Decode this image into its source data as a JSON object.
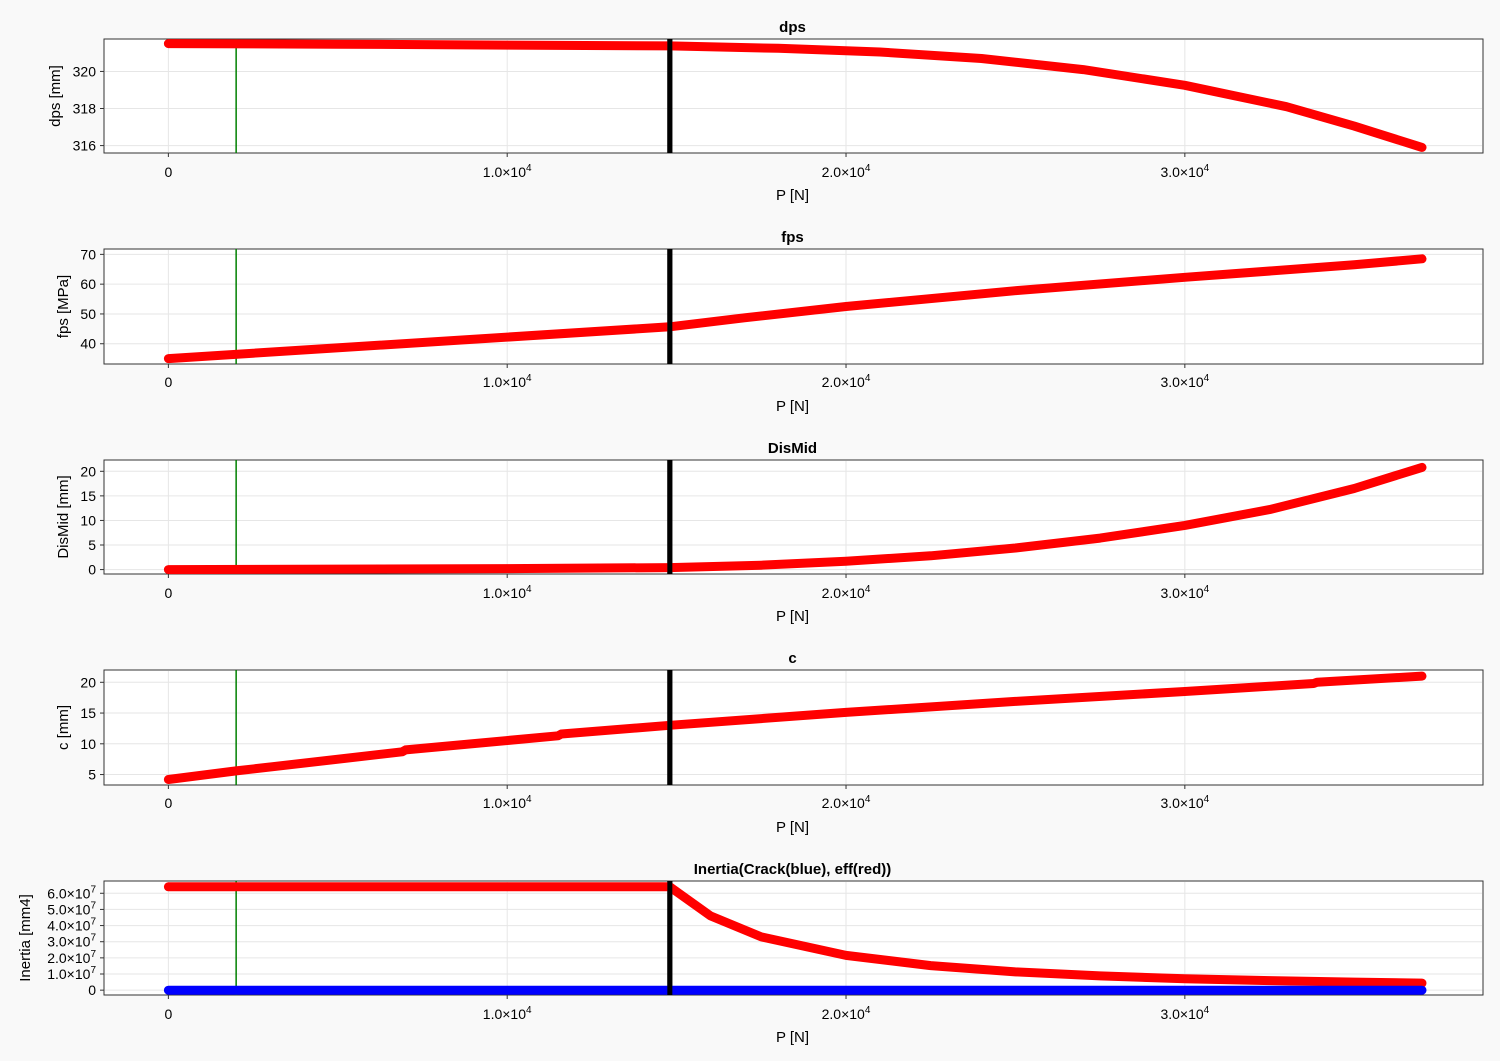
{
  "chart_data": [
    {
      "type": "line",
      "title": "dps",
      "xlabel": "P [N]",
      "ylabel": "dps [mm]",
      "xlim": [
        -1900,
        38800
      ],
      "ylim": [
        315.6,
        321.75
      ],
      "xticks": [
        0,
        10000,
        20000,
        30000
      ],
      "xtick_labels": [
        {
          "mant": "0",
          "exp": ""
        },
        {
          "mant": "1.0×10",
          "exp": "4"
        },
        {
          "mant": "2.0×10",
          "exp": "4"
        },
        {
          "mant": "3.0×10",
          "exp": "4"
        }
      ],
      "yticks": [
        316,
        318,
        320
      ],
      "ytick_labels": [
        {
          "mant": "316",
          "exp": ""
        },
        {
          "mant": "318",
          "exp": ""
        },
        {
          "mant": "320",
          "exp": ""
        }
      ],
      "grid": true,
      "series": [
        {
          "color": "#ff0000",
          "x": [
            0,
            5000,
            10000,
            14800,
            18000,
            21000,
            24000,
            27000,
            30000,
            33000,
            35000,
            37000
          ],
          "y": [
            321.5,
            321.47,
            321.42,
            321.38,
            321.25,
            321.05,
            320.7,
            320.1,
            319.25,
            318.1,
            317.05,
            315.9
          ]
        }
      ],
      "vlines": [
        {
          "x": 2000,
          "color": "#008000",
          "width": 1.5
        },
        {
          "x": 14800,
          "color": "#000000",
          "width": 5
        }
      ]
    },
    {
      "type": "line",
      "title": "fps",
      "xlabel": "P [N]",
      "ylabel": "fps [MPa]",
      "xlim": [
        -1900,
        38800
      ],
      "ylim": [
        33.2,
        71.8
      ],
      "xticks": [
        0,
        10000,
        20000,
        30000
      ],
      "xtick_labels": [
        {
          "mant": "0",
          "exp": ""
        },
        {
          "mant": "1.0×10",
          "exp": "4"
        },
        {
          "mant": "2.0×10",
          "exp": "4"
        },
        {
          "mant": "3.0×10",
          "exp": "4"
        }
      ],
      "yticks": [
        40,
        50,
        60,
        70
      ],
      "ytick_labels": [
        {
          "mant": "40",
          "exp": ""
        },
        {
          "mant": "50",
          "exp": ""
        },
        {
          "mant": "60",
          "exp": ""
        },
        {
          "mant": "70",
          "exp": ""
        }
      ],
      "grid": true,
      "series": [
        {
          "color": "#ff0000",
          "x": [
            0,
            14800,
            17000,
            20000,
            25000,
            30000,
            35000,
            37000
          ],
          "y": [
            35,
            45.7,
            48.7,
            52.5,
            57.8,
            62.3,
            66.5,
            68.5
          ]
        }
      ],
      "vlines": [
        {
          "x": 2000,
          "color": "#008000",
          "width": 1.5
        },
        {
          "x": 14800,
          "color": "#000000",
          "width": 5
        }
      ]
    },
    {
      "type": "line",
      "title": "DisMid",
      "xlabel": "P [N]",
      "ylabel": "DisMid [mm]",
      "xlim": [
        -1900,
        38800
      ],
      "ylim": [
        -0.9,
        22.3
      ],
      "xticks": [
        0,
        10000,
        20000,
        30000
      ],
      "xtick_labels": [
        {
          "mant": "0",
          "exp": ""
        },
        {
          "mant": "1.0×10",
          "exp": "4"
        },
        {
          "mant": "2.0×10",
          "exp": "4"
        },
        {
          "mant": "3.0×10",
          "exp": "4"
        }
      ],
      "yticks": [
        0,
        5,
        10,
        15,
        20
      ],
      "ytick_labels": [
        {
          "mant": "0",
          "exp": ""
        },
        {
          "mant": "5",
          "exp": ""
        },
        {
          "mant": "10",
          "exp": ""
        },
        {
          "mant": "15",
          "exp": ""
        },
        {
          "mant": "20",
          "exp": ""
        }
      ],
      "grid": true,
      "series": [
        {
          "color": "#ff0000",
          "x": [
            0,
            5000,
            10000,
            14800,
            17500,
            20000,
            22500,
            25000,
            27500,
            30000,
            32500,
            35000,
            37000
          ],
          "y": [
            0,
            0.1,
            0.2,
            0.4,
            0.9,
            1.7,
            2.8,
            4.4,
            6.4,
            9.0,
            12.2,
            16.5,
            20.8
          ]
        }
      ],
      "vlines": [
        {
          "x": 2000,
          "color": "#008000",
          "width": 1.5
        },
        {
          "x": 14800,
          "color": "#000000",
          "width": 5
        }
      ]
    },
    {
      "type": "line",
      "title": "c",
      "xlabel": "P [N]",
      "ylabel": "c [mm]",
      "xlim": [
        -1900,
        38800
      ],
      "ylim": [
        3.3,
        22
      ],
      "xticks": [
        0,
        10000,
        20000,
        30000
      ],
      "xtick_labels": [
        {
          "mant": "0",
          "exp": ""
        },
        {
          "mant": "1.0×10",
          "exp": "4"
        },
        {
          "mant": "2.0×10",
          "exp": "4"
        },
        {
          "mant": "3.0×10",
          "exp": "4"
        }
      ],
      "yticks": [
        5,
        10,
        15,
        20
      ],
      "ytick_labels": [
        {
          "mant": "5",
          "exp": ""
        },
        {
          "mant": "10",
          "exp": ""
        },
        {
          "mant": "15",
          "exp": ""
        },
        {
          "mant": "20",
          "exp": ""
        }
      ],
      "grid": true,
      "series": [
        {
          "color": "#ff0000",
          "x": [
            0,
            2000,
            6900,
            7000,
            11500,
            11600,
            14800,
            20000,
            25000,
            30000,
            33800,
            33900,
            37000
          ],
          "y": [
            4.2,
            5.6,
            8.7,
            9.0,
            11.3,
            11.6,
            13.0,
            15.1,
            16.9,
            18.5,
            19.8,
            20.0,
            21.0
          ]
        }
      ],
      "vlines": [
        {
          "x": 2000,
          "color": "#008000",
          "width": 1.5
        },
        {
          "x": 14800,
          "color": "#000000",
          "width": 5
        }
      ]
    },
    {
      "type": "line",
      "title": "Inertia(Crack(blue), eff(red))",
      "xlabel": "P [N]",
      "ylabel": "Inertia [mm4]",
      "xlim": [
        -1900,
        38800
      ],
      "ylim": [
        -3000000,
        67600000
      ],
      "xticks": [
        0,
        10000,
        20000,
        30000
      ],
      "xtick_labels": [
        {
          "mant": "0",
          "exp": ""
        },
        {
          "mant": "1.0×10",
          "exp": "4"
        },
        {
          "mant": "2.0×10",
          "exp": "4"
        },
        {
          "mant": "3.0×10",
          "exp": "4"
        }
      ],
      "yticks": [
        0,
        10000000,
        20000000,
        30000000,
        40000000,
        50000000,
        60000000
      ],
      "ytick_labels": [
        {
          "mant": "0",
          "exp": ""
        },
        {
          "mant": "1.0×10",
          "exp": "7"
        },
        {
          "mant": "2.0×10",
          "exp": "7"
        },
        {
          "mant": "3.0×10",
          "exp": "7"
        },
        {
          "mant": "4.0×10",
          "exp": "7"
        },
        {
          "mant": "5.0×10",
          "exp": "7"
        },
        {
          "mant": "6.0×10",
          "exp": "7"
        }
      ],
      "grid": true,
      "series": [
        {
          "color": "#ff0000",
          "x": [
            0,
            14800,
            16000,
            17500,
            20000,
            22500,
            25000,
            27500,
            30000,
            32500,
            35000,
            37000
          ],
          "y": [
            64000000,
            64000000,
            46000000,
            33000000,
            21500000,
            15200000,
            11300000,
            8800000,
            7100000,
            5900000,
            5000000,
            4400000
          ]
        },
        {
          "color": "#0000ff",
          "x": [
            0,
            37000
          ],
          "y": [
            0,
            0
          ]
        }
      ],
      "vlines": [
        {
          "x": 2000,
          "color": "#008000",
          "width": 1.5
        },
        {
          "x": 14800,
          "color": "#000000",
          "width": 5
        }
      ]
    }
  ]
}
